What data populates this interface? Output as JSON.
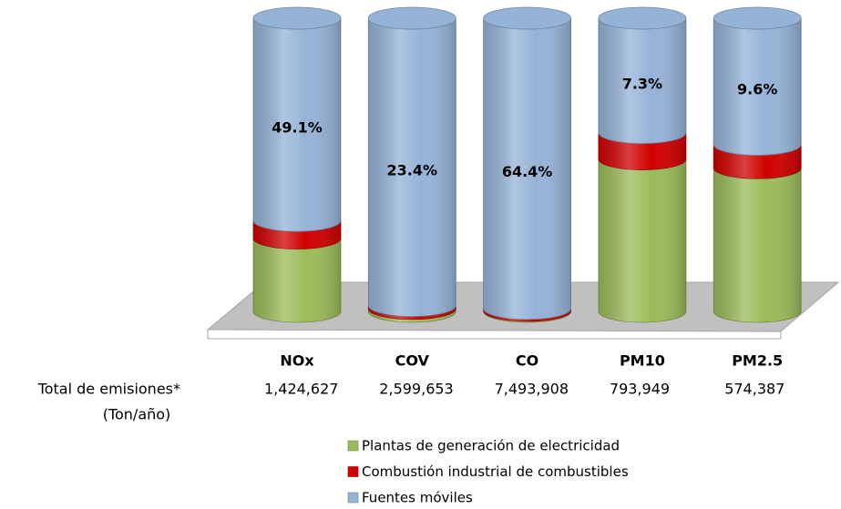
{
  "chart_data": {
    "type": "cylinder-stacked",
    "categories": [
      "NOx",
      "COV",
      "CO",
      "PM10",
      "PM2.5"
    ],
    "ylim": [
      0,
      100
    ],
    "series": [
      {
        "name": "Plantas de generación de electricidad",
        "color": "#9bbb59",
        "values": [
          25,
          1,
          0.3,
          52,
          49
        ]
      },
      {
        "name": "Combustión industrial de combustibles",
        "color": "#d00000",
        "values": [
          6,
          1,
          0.7,
          9,
          8
        ]
      },
      {
        "name": "Fuentes móviles",
        "color": "#95b3d7",
        "values": [
          69,
          98,
          99,
          39,
          43
        ]
      }
    ],
    "annotations": [
      "49.1%",
      "23.4%",
      "64.4%",
      "7.3%",
      "9.6%"
    ],
    "totals": {
      "label": "Total de emisiones*",
      "unit": "(Ton/año)",
      "values": [
        1424627,
        2599653,
        7493908,
        793949,
        574387
      ],
      "value_labels": [
        "1,424,627",
        "2,599,653",
        "7,493,908",
        "793,949",
        "574,387"
      ]
    },
    "legend": "bottom"
  }
}
